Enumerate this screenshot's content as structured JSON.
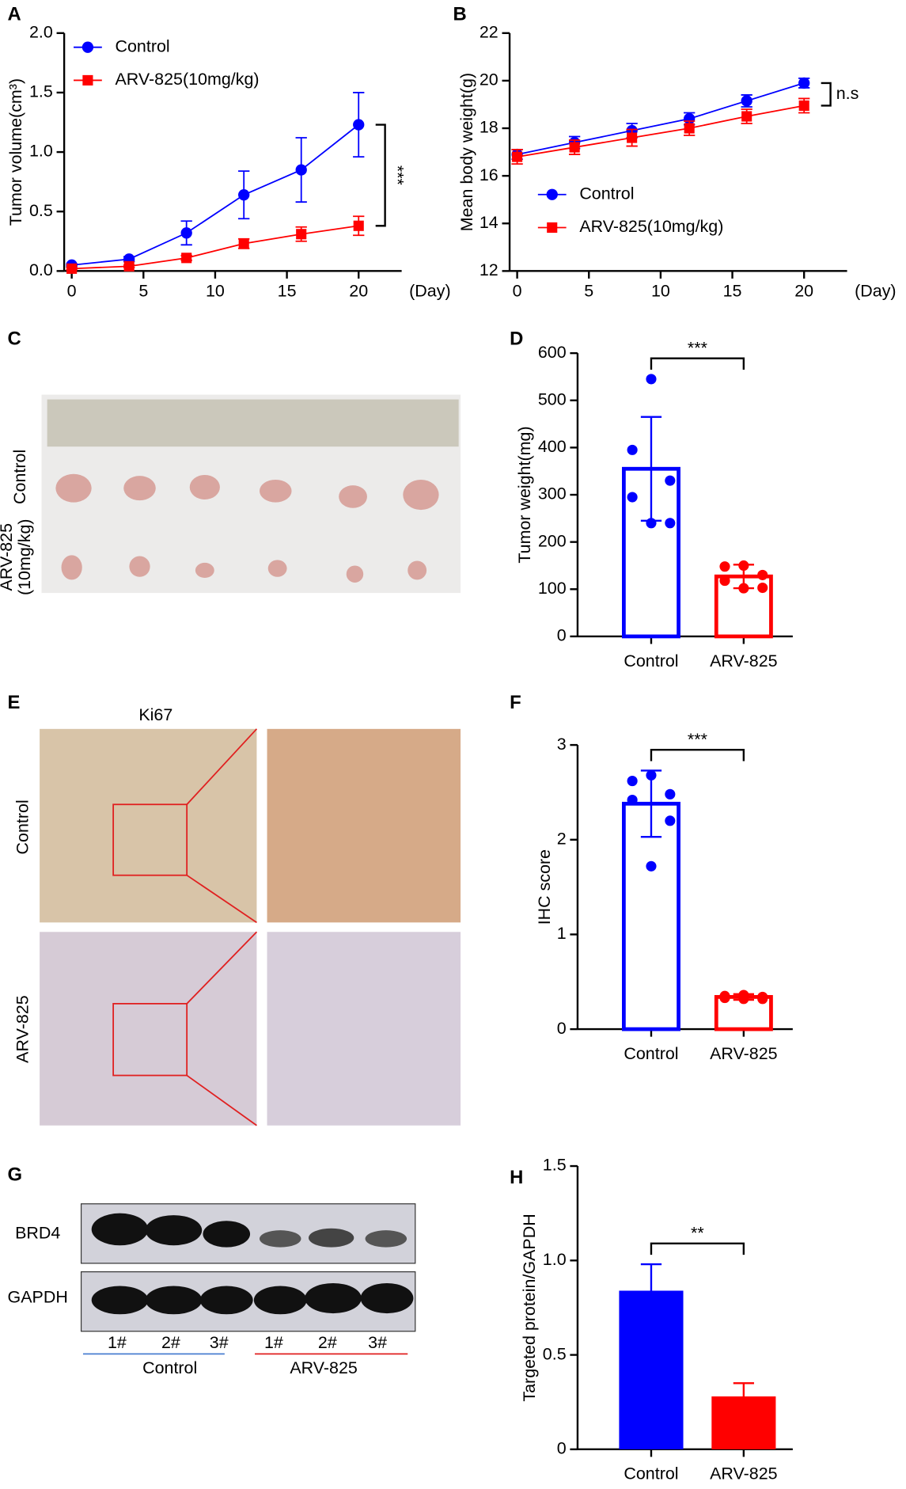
{
  "chart_data": [
    {
      "type": "line",
      "panel": "A",
      "ylabel": "Tumor volume(cm³)",
      "xlabel": "(Day)",
      "x": [
        0,
        4,
        8,
        12,
        16,
        20
      ],
      "xlim": [
        0,
        23
      ],
      "xticks": [
        0,
        5,
        10,
        15,
        20
      ],
      "ylim": [
        0,
        2
      ],
      "yticks": [
        {
          "value": 0,
          "label": "0.0"
        },
        {
          "value": 0.5,
          "label": "0.5"
        },
        {
          "value": 1,
          "label": "1.0"
        },
        {
          "value": 1.5,
          "label": "1.5"
        },
        {
          "value": 2,
          "label": "2.0"
        }
      ],
      "legend": "upper left",
      "annotation": "***",
      "annotation_orientation": "vertical",
      "series": [
        {
          "name": "Control",
          "color": "#0000ff",
          "marker": "circle",
          "values": [
            0.05,
            0.1,
            0.32,
            0.64,
            0.85,
            1.23
          ],
          "errors": [
            0.01,
            0.02,
            0.1,
            0.2,
            0.27,
            0.27
          ]
        },
        {
          "name": "ARV-825(10mg/kg)",
          "color": "#ff0000",
          "marker": "square",
          "values": [
            0.02,
            0.04,
            0.11,
            0.23,
            0.31,
            0.38
          ],
          "errors": [
            0.01,
            0.01,
            0.02,
            0.04,
            0.06,
            0.08
          ]
        }
      ]
    },
    {
      "type": "line",
      "panel": "B",
      "ylabel": "Mean body weight(g)",
      "xlabel": "(Day)",
      "x": [
        0,
        4,
        8,
        12,
        16,
        20
      ],
      "xlim": [
        0,
        23
      ],
      "xticks": [
        0,
        5,
        10,
        15,
        20
      ],
      "ylim": [
        12,
        22
      ],
      "yticks": [
        12,
        14,
        16,
        18,
        20,
        22
      ],
      "legend": "lower left",
      "annotation": "n.s",
      "annotation_orientation": "horizontal",
      "series": [
        {
          "name": "Control",
          "color": "#0000ff",
          "marker": "circle",
          "values": [
            16.9,
            17.4,
            17.9,
            18.4,
            19.15,
            19.9
          ],
          "errors": [
            0.2,
            0.25,
            0.3,
            0.25,
            0.25,
            0.2
          ]
        },
        {
          "name": "ARV-825(10mg/kg)",
          "color": "#ff0000",
          "marker": "square",
          "values": [
            16.8,
            17.2,
            17.6,
            18.0,
            18.5,
            18.95
          ],
          "errors": [
            0.3,
            0.3,
            0.35,
            0.3,
            0.3,
            0.3
          ]
        }
      ]
    },
    {
      "type": "bar",
      "panel": "D",
      "ylabel": "Tumor weight(mg)",
      "filled": false,
      "categories": [
        "Control",
        "ARV-825"
      ],
      "colors": [
        "#0000ff",
        "#ff0000"
      ],
      "values": [
        355,
        127
      ],
      "errors": [
        110,
        25
      ],
      "points": [
        [
          545,
          395,
          330,
          295,
          240,
          240
        ],
        [
          150,
          148,
          130,
          118,
          103,
          102
        ]
      ],
      "ylim": [
        0,
        600
      ],
      "yticks": [
        0,
        100,
        200,
        300,
        400,
        500,
        600
      ],
      "annotation": "***"
    },
    {
      "type": "bar",
      "panel": "F",
      "ylabel": "IHC score",
      "filled": false,
      "categories": [
        "Control",
        "ARV-825"
      ],
      "colors": [
        "#0000ff",
        "#ff0000"
      ],
      "values": [
        2.38,
        0.34
      ],
      "errors": [
        0.35,
        0.03
      ],
      "points": [
        [
          2.68,
          2.62,
          2.48,
          2.42,
          2.2,
          1.72
        ],
        [
          0.36,
          0.35,
          0.34,
          0.33,
          0.32,
          0.32
        ]
      ],
      "ylim": [
        0,
        3
      ],
      "yticks": [
        0,
        1,
        2,
        3
      ],
      "annotation": "***"
    },
    {
      "type": "bar",
      "panel": "H",
      "ylabel": "Targeted protein/GAPDH",
      "filled": true,
      "categories": [
        "Control",
        "ARV-825"
      ],
      "colors": [
        "#0000ff",
        "#ff0000"
      ],
      "values": [
        0.84,
        0.28
      ],
      "errors": [
        0.14,
        0.07
      ],
      "ylim": [
        0,
        1.5
      ],
      "yticks": [
        0,
        0.5,
        {
          "value": 1,
          "label": "1.0"
        },
        1.5
      ],
      "annotation": "**"
    }
  ],
  "tumor_photo": {
    "panel": "C",
    "rows": [
      [
        "Control"
      ],
      [
        "ARV-825",
        "(10mg/kg)"
      ]
    ]
  },
  "ihc": {
    "panel": "E",
    "stain": "Ki67",
    "rows": [
      "Control",
      "ARV-825"
    ]
  },
  "western_blot": {
    "panel": "G",
    "proteins": [
      "BRD4",
      "GAPDH"
    ],
    "lanes": [
      "1#",
      "2#",
      "3#",
      "1#",
      "2#",
      "3#"
    ],
    "groups": [
      "Control",
      "ARV-825"
    ]
  }
}
